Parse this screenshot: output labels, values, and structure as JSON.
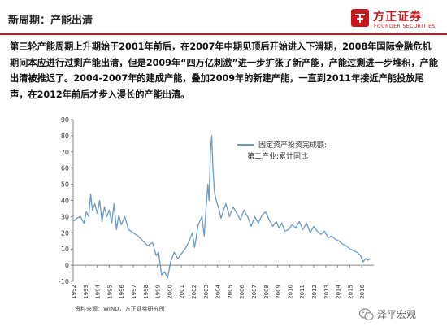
{
  "header": {
    "title": "新周期：产能出清",
    "logo_cn": "方正证券",
    "logo_en": "FOUNDER SECURITIES",
    "accent_color": "#c8161d"
  },
  "body_text": "第三轮产能周期上升期始于2001年前后，在2007年中期见顶后开始进入下滑期，2008年国际金融危机期间本应进行过剩产能出清，但是2009年“四万亿刺激”进一步扩张了新产能，产能过剩进一步堆积，产能出清被推迟了。2004-2007年的建成产能，叠加2009年的新建产能，一直到2011年接近产能投放尾声，在2012年前后才步入漫长的产能出清。",
  "footer": {
    "source": "资料来源：WIND，方正证券研究所",
    "watermark": "泽平宏观"
  },
  "chart_data": {
    "type": "line",
    "title": "",
    "xlabel": "",
    "ylabel": "",
    "ylim": [
      -10,
      90
    ],
    "yticks": [
      -10,
      0,
      10,
      20,
      30,
      40,
      50,
      60,
      70,
      80,
      90
    ],
    "xlim": [
      1992.0,
      2017.0
    ],
    "xticks": [
      "1992",
      "1993",
      "1994",
      "1995",
      "1996",
      "1997",
      "1998",
      "1999",
      "2000",
      "2001",
      "2002",
      "2003",
      "2004",
      "2005",
      "2006",
      "2007",
      "2008",
      "2009",
      "2010",
      "2011",
      "2012",
      "2013",
      "2014",
      "2015",
      "2016"
    ],
    "legend": {
      "placement": "top-right",
      "label": "固定资产投资完成额:第二产业:累计同比"
    },
    "grid": false,
    "line_color": "#6a9ac6",
    "series": [
      {
        "name": "固定资产投资完成额:第二产业:累计同比",
        "x": [
          1992.0,
          1992.3,
          1992.6,
          1992.9,
          1993.1,
          1993.3,
          1993.45,
          1993.6,
          1993.8,
          1994.0,
          1994.2,
          1994.4,
          1994.6,
          1994.8,
          1995.0,
          1995.2,
          1995.4,
          1995.6,
          1995.8,
          1996.0,
          1996.3,
          1996.6,
          1997.0,
          1997.4,
          1997.8,
          1998.2,
          1998.6,
          1998.9,
          1999.1,
          1999.35,
          1999.6,
          1999.85,
          2000.1,
          2000.4,
          2000.7,
          2001.0,
          2001.3,
          2001.6,
          2001.9,
          2002.1,
          2002.4,
          2002.7,
          2002.9,
          2003.05,
          2003.2,
          2003.3,
          2003.42,
          2003.52,
          2003.62,
          2003.75,
          2003.9,
          2004.1,
          2004.3,
          2004.5,
          2004.7,
          2005.0,
          2005.3,
          2005.6,
          2005.9,
          2006.2,
          2006.5,
          2006.8,
          2007.1,
          2007.4,
          2007.7,
          2008.0,
          2008.3,
          2008.6,
          2008.9,
          2009.1,
          2009.35,
          2009.6,
          2009.9,
          2010.2,
          2010.5,
          2010.8,
          2011.1,
          2011.4,
          2011.7,
          2012.0,
          2012.3,
          2012.6,
          2012.9,
          2013.2,
          2013.5,
          2013.8,
          2014.1,
          2014.4,
          2014.7,
          2015.0,
          2015.3,
          2015.6,
          2015.9,
          2016.1,
          2016.3,
          2016.5,
          2016.7
        ],
        "values": [
          27,
          29,
          30,
          26,
          33,
          30,
          44,
          34,
          38,
          32,
          40,
          27,
          36,
          30,
          34,
          26,
          38,
          22,
          31,
          25,
          30,
          22,
          20,
          18,
          15,
          12,
          14,
          6,
          8,
          -6,
          -4,
          -8,
          2,
          8,
          4,
          7,
          10,
          14,
          20,
          11,
          25,
          30,
          18,
          35,
          50,
          40,
          70,
          80,
          60,
          45,
          40,
          35,
          29,
          34,
          38,
          30,
          36,
          32,
          28,
          34,
          30,
          24,
          30,
          26,
          31,
          33,
          28,
          24,
          27,
          23,
          26,
          21,
          22,
          25,
          23,
          27,
          22,
          26,
          20,
          24,
          21,
          19,
          21,
          17,
          18,
          16,
          15,
          13,
          12,
          10,
          9,
          8,
          6,
          2,
          4,
          3,
          4
        ]
      }
    ]
  }
}
